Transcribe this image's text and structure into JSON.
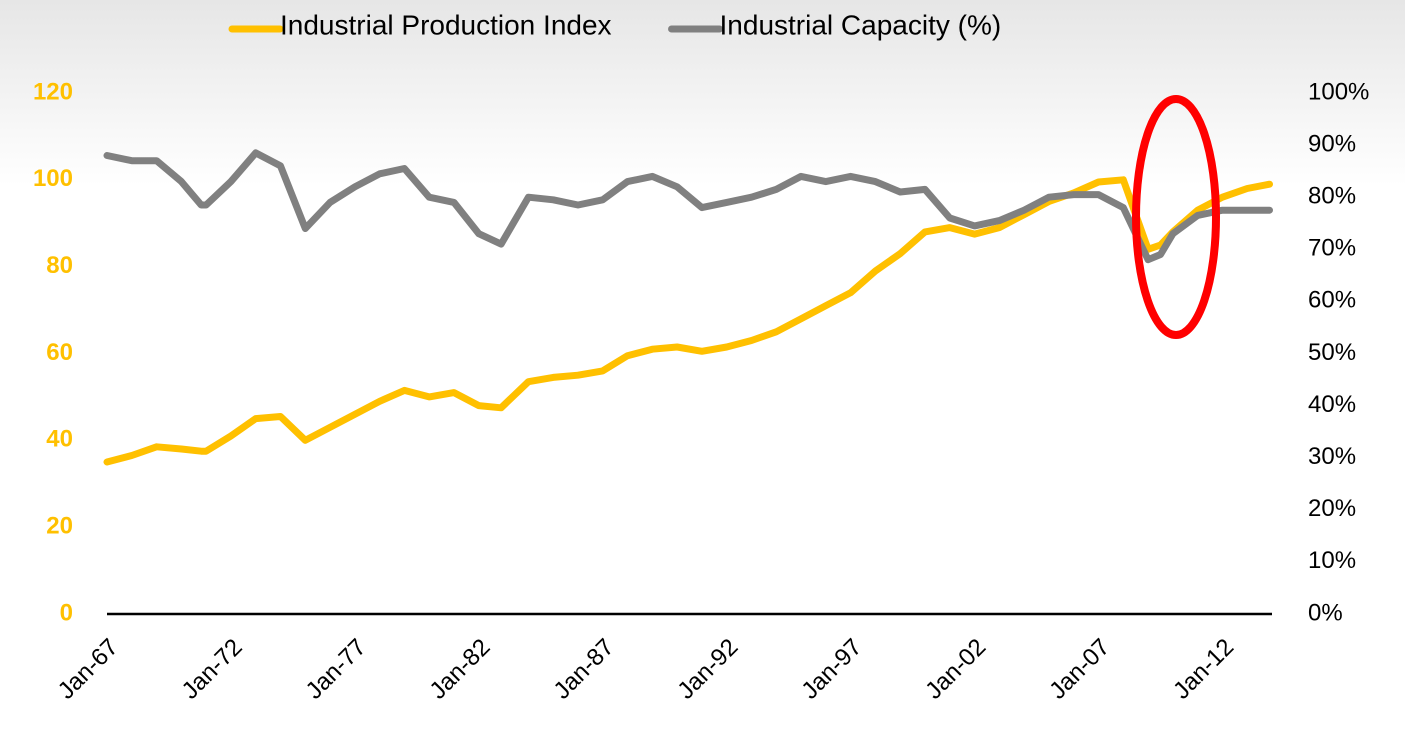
{
  "chart_data": {
    "type": "line",
    "x": [
      1967,
      1968,
      1969,
      1970,
      1970.8,
      1971,
      1972,
      1973,
      1974,
      1975,
      1976,
      1977,
      1978,
      1979,
      1980,
      1981,
      1982,
      1982.9,
      1984,
      1985,
      1986,
      1987,
      1988,
      1989,
      1990,
      1991,
      1992,
      1993,
      1994,
      1995,
      1996,
      1997,
      1998,
      1999,
      2000,
      2001,
      2002,
      2003,
      2004,
      2005,
      2006,
      2007,
      2008,
      2009,
      2009.5,
      2010,
      2011,
      2012,
      2013,
      2013.9
    ],
    "series": [
      {
        "name": "Industrial Production Index",
        "color": "#ffc000",
        "values": [
          35,
          36.5,
          38.5,
          38,
          37.5,
          37.5,
          41,
          45,
          45.5,
          40,
          43,
          46,
          49,
          51.5,
          50,
          51,
          48,
          47.5,
          53.5,
          54.5,
          55,
          56,
          59.5,
          61,
          61.5,
          60.5,
          61.5,
          63,
          65,
          68,
          71,
          74,
          79,
          83,
          88,
          89,
          87.5,
          89,
          92,
          95,
          97,
          99.5,
          100,
          84,
          85,
          88,
          93,
          96,
          98,
          99
        ]
      },
      {
        "name": "Industrial Capacity (%)",
        "color": "#808080",
        "axis": "y2",
        "values": [
          88,
          87,
          87,
          83,
          78.5,
          78.5,
          83,
          88.5,
          86,
          74,
          79,
          82,
          84.5,
          85.5,
          80,
          79,
          73,
          71,
          80,
          79.5,
          78.5,
          79.5,
          83,
          84,
          82,
          78,
          79,
          80,
          81.5,
          84,
          83,
          84,
          83,
          81,
          81.5,
          76,
          74.5,
          75.5,
          77.5,
          80,
          80.5,
          80.5,
          78,
          68,
          69,
          73,
          76.5,
          77.5,
          77.5,
          77.5
        ]
      }
    ],
    "xlim": [
      1967,
      2014
    ],
    "xticks": [
      {
        "value": 1967,
        "label": "Jan-67"
      },
      {
        "value": 1972,
        "label": "Jan-72"
      },
      {
        "value": 1977,
        "label": "Jan-77"
      },
      {
        "value": 1982,
        "label": "Jan-82"
      },
      {
        "value": 1987,
        "label": "Jan-87"
      },
      {
        "value": 1992,
        "label": "Jan-92"
      },
      {
        "value": 1997,
        "label": "Jan-97"
      },
      {
        "value": 2002,
        "label": "Jan-02"
      },
      {
        "value": 2007,
        "label": "Jan-07"
      },
      {
        "value": 2012,
        "label": "Jan-12"
      }
    ],
    "ylim": [
      0,
      120
    ],
    "yticks": [
      0,
      20,
      40,
      60,
      80,
      100,
      120
    ],
    "y2lim": [
      0,
      100
    ],
    "y2ticks": [
      {
        "value": 0,
        "label": "0%"
      },
      {
        "value": 10,
        "label": "10%"
      },
      {
        "value": 20,
        "label": "20%"
      },
      {
        "value": 30,
        "label": "30%"
      },
      {
        "value": 40,
        "label": "40%"
      },
      {
        "value": 50,
        "label": "50%"
      },
      {
        "value": 60,
        "label": "60%"
      },
      {
        "value": 70,
        "label": "70%"
      },
      {
        "value": 80,
        "label": "80%"
      },
      {
        "value": 90,
        "label": "90%"
      },
      {
        "value": 100,
        "label": "100%"
      }
    ],
    "legend": "top"
  }
}
